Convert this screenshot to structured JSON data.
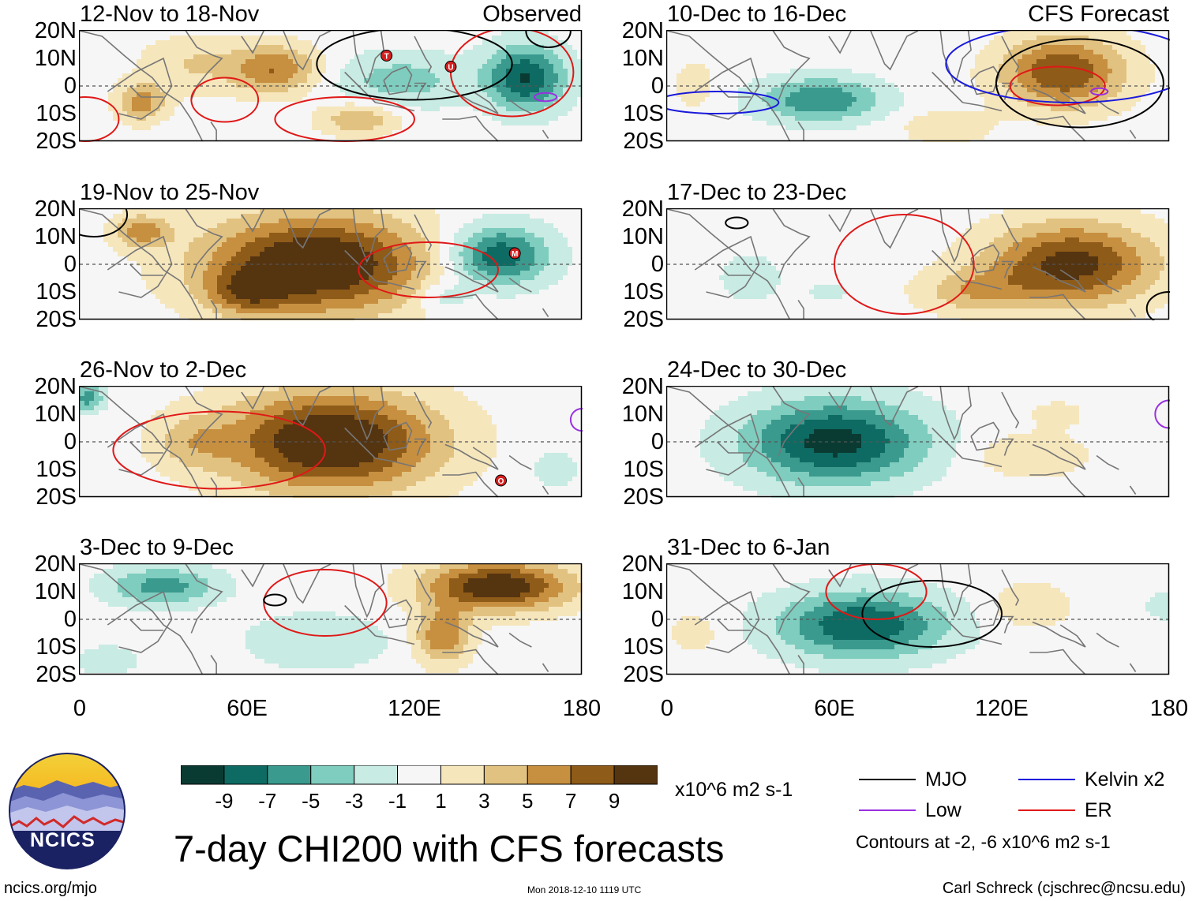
{
  "panels": [
    {
      "title": "12-Nov to 18-Nov",
      "label": "Observed",
      "type": "obs",
      "pattern": 0
    },
    {
      "title": "10-Dec to 16-Dec",
      "label": "CFS Forecast",
      "type": "fc",
      "pattern": 4
    },
    {
      "title": "19-Nov to 25-Nov",
      "label": "",
      "type": "obs",
      "pattern": 1
    },
    {
      "title": "17-Dec to 23-Dec",
      "label": "",
      "type": "fc",
      "pattern": 5
    },
    {
      "title": "26-Nov to 2-Dec",
      "label": "",
      "type": "obs",
      "pattern": 2
    },
    {
      "title": "24-Dec to 30-Dec",
      "label": "",
      "type": "fc",
      "pattern": 6
    },
    {
      "title": "3-Dec to 9-Dec",
      "label": "",
      "type": "obs",
      "pattern": 3
    },
    {
      "title": "31-Dec to 6-Jan",
      "label": "",
      "type": "fc",
      "pattern": 7
    }
  ],
  "lat_labels": [
    "20N",
    "10N",
    "0",
    "10S",
    "20S"
  ],
  "lon_labels": [
    "0",
    "60E",
    "120E",
    "180"
  ],
  "colorbar": {
    "colors": [
      "#0a3b33",
      "#0e6b63",
      "#3a9a8e",
      "#7fcdbf",
      "#c8ebe3",
      "#f6f6f6",
      "#f6e6bc",
      "#e2c280",
      "#c78f40",
      "#8f5b18",
      "#553410"
    ],
    "labels": [
      "-9",
      "-7",
      "-5",
      "-3",
      "-1",
      "1",
      "3",
      "5",
      "7",
      "9"
    ],
    "units": "x10^6 m2 s-1"
  },
  "legend": {
    "items": [
      {
        "name": "MJO",
        "color": "#000000"
      },
      {
        "name": "Kelvin x2",
        "color": "#1a1adc"
      },
      {
        "name": "Low",
        "color": "#9a30e0"
      },
      {
        "name": "ER",
        "color": "#e01818"
      }
    ],
    "note": "Contours at -2, -6 x10^6 m2 s-1"
  },
  "logo_text": "NCICS",
  "main_title": "7-day CHI200 with CFS forecasts",
  "url_text": "ncics.org/mjo",
  "timestamp": "Mon 2018-12-10 1119 UTC",
  "author": "Carl Schreck (cjschrec@ncsu.edu)",
  "storm_markers": [
    {
      "panel": 0,
      "letter": "T"
    },
    {
      "panel": 0,
      "letter": "U"
    },
    {
      "panel": 2,
      "letter": "M"
    },
    {
      "panel": 4,
      "letter": "O"
    }
  ]
}
